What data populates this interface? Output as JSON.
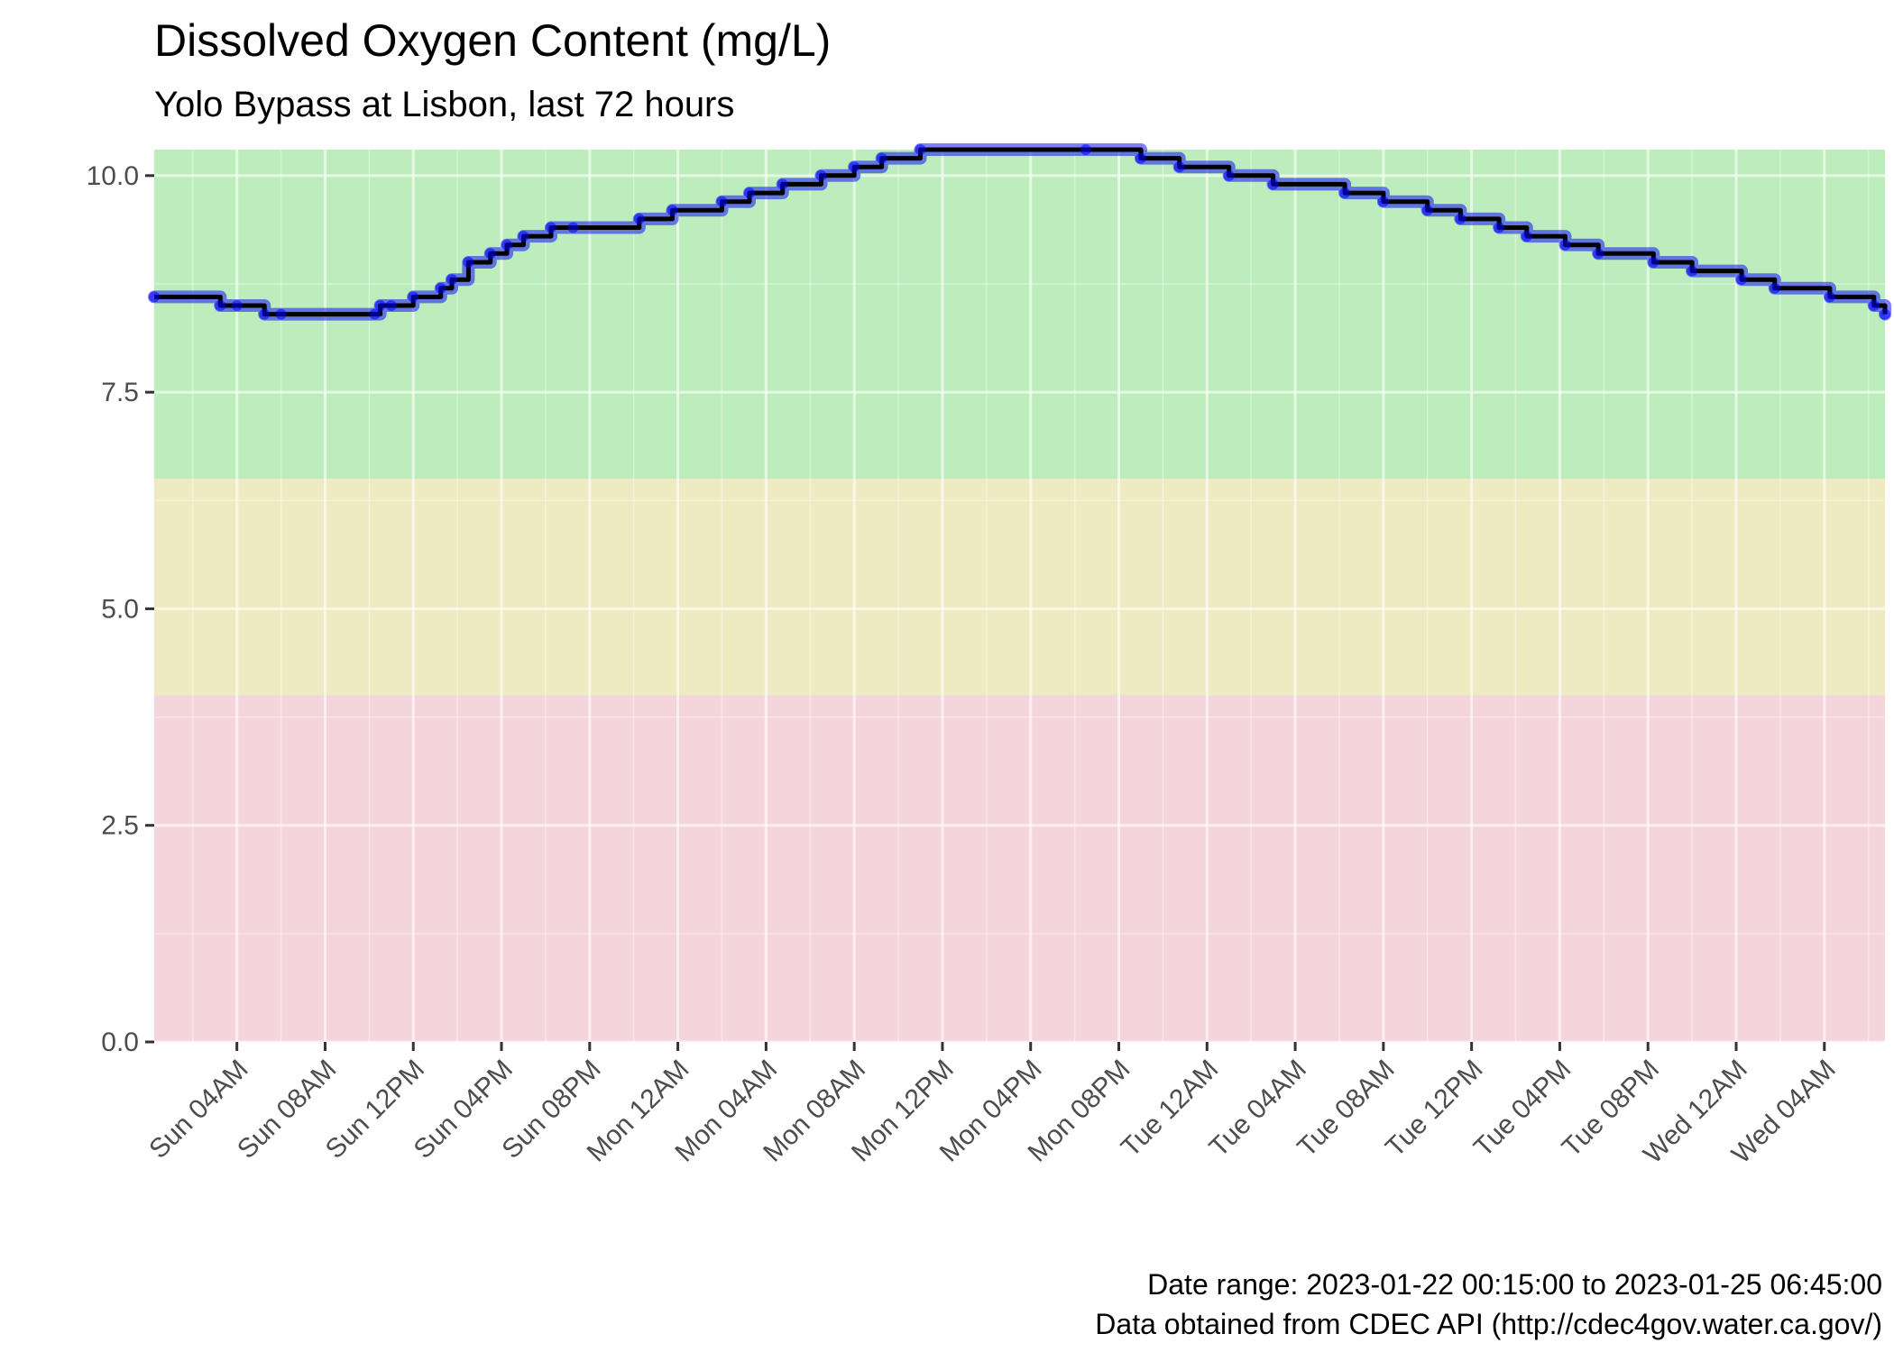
{
  "chart_data": {
    "type": "line",
    "title": "Dissolved Oxygen Content (mg/L)",
    "subtitle": "Yolo Bypass at Lisbon, last 72 hours",
    "xlabel": "",
    "ylabel": "",
    "xlim": [
      "2023-01-22T00:15:00",
      "2023-01-25T06:45:00"
    ],
    "ylim": [
      0,
      10.3
    ],
    "y_ticks": [
      0,
      2.5,
      5,
      7.5,
      10
    ],
    "y_tick_labels": [
      "0.0",
      "2.5",
      "5.0",
      "7.5",
      "10.0"
    ],
    "x_ticks": [
      "2023-01-22T04:00",
      "2023-01-22T08:00",
      "2023-01-22T12:00",
      "2023-01-22T16:00",
      "2023-01-22T20:00",
      "2023-01-23T00:00",
      "2023-01-23T04:00",
      "2023-01-23T08:00",
      "2023-01-23T12:00",
      "2023-01-23T16:00",
      "2023-01-23T20:00",
      "2023-01-24T00:00",
      "2023-01-24T04:00",
      "2023-01-24T08:00",
      "2023-01-24T12:00",
      "2023-01-24T16:00",
      "2023-01-24T20:00",
      "2023-01-25T00:00",
      "2023-01-25T04:00"
    ],
    "x_tick_labels": [
      "Sun 04AM",
      "Sun 08AM",
      "Sun 12PM",
      "Sun 04PM",
      "Sun 08PM",
      "Mon 12AM",
      "Mon 04AM",
      "Mon 08AM",
      "Mon 12PM",
      "Mon 04PM",
      "Mon 08PM",
      "Tue 12AM",
      "Tue 04AM",
      "Tue 08AM",
      "Tue 12PM",
      "Tue 04PM",
      "Tue 08PM",
      "Wed 12AM",
      "Wed 04AM"
    ],
    "bands": [
      {
        "from": 0,
        "to": 4,
        "color": "#f5d5dc"
      },
      {
        "from": 4,
        "to": 6.5,
        "color": "#eeebc3"
      },
      {
        "from": 6.5,
        "to": 10.3,
        "color": "#bdedbc"
      }
    ],
    "grid": true,
    "legend": "none",
    "series_color": "#0000ff",
    "line_color": "#000000",
    "x": [
      "2023-01-22T00:15",
      "2023-01-22T03:15",
      "2023-01-22T04:00",
      "2023-01-22T05:15",
      "2023-01-22T06:00",
      "2023-01-22T10:15",
      "2023-01-22T10:30",
      "2023-01-22T11:00",
      "2023-01-22T12:00",
      "2023-01-22T13:15",
      "2023-01-22T13:45",
      "2023-01-22T14:30",
      "2023-01-22T15:30",
      "2023-01-22T16:15",
      "2023-01-22T17:00",
      "2023-01-22T18:15",
      "2023-01-22T19:15",
      "2023-01-22T22:15",
      "2023-01-22T23:45",
      "2023-01-23T02:00",
      "2023-01-23T03:15",
      "2023-01-23T04:45",
      "2023-01-23T06:30",
      "2023-01-23T08:00",
      "2023-01-23T09:15",
      "2023-01-23T11:00",
      "2023-01-23T18:30",
      "2023-01-23T21:00",
      "2023-01-23T22:45",
      "2023-01-24T01:00",
      "2023-01-24T03:00",
      "2023-01-24T06:15",
      "2023-01-24T08:00",
      "2023-01-24T10:00",
      "2023-01-24T11:30",
      "2023-01-24T13:15",
      "2023-01-24T14:30",
      "2023-01-24T16:15",
      "2023-01-24T17:45",
      "2023-01-24T20:15",
      "2023-01-24T22:00",
      "2023-01-25T00:15",
      "2023-01-25T01:45",
      "2023-01-25T04:15",
      "2023-01-25T06:15",
      "2023-01-25T06:45"
    ],
    "values": [
      8.6,
      8.5,
      8.5,
      8.4,
      8.4,
      8.4,
      8.5,
      8.5,
      8.6,
      8.7,
      8.8,
      9.0,
      9.1,
      9.2,
      9.3,
      9.4,
      9.4,
      9.5,
      9.6,
      9.7,
      9.8,
      9.9,
      10.0,
      10.1,
      10.2,
      10.3,
      10.3,
      10.2,
      10.1,
      10.0,
      9.9,
      9.8,
      9.7,
      9.6,
      9.5,
      9.4,
      9.3,
      9.2,
      9.1,
      9.0,
      8.9,
      8.8,
      8.7,
      8.6,
      8.5,
      8.4
    ]
  },
  "caption": {
    "line1": "Date range: 2023-01-22 00:15:00 to 2023-01-25 06:45:00",
    "line2": "Data obtained from CDEC API (http://cdec4gov.water.ca.gov/)"
  }
}
